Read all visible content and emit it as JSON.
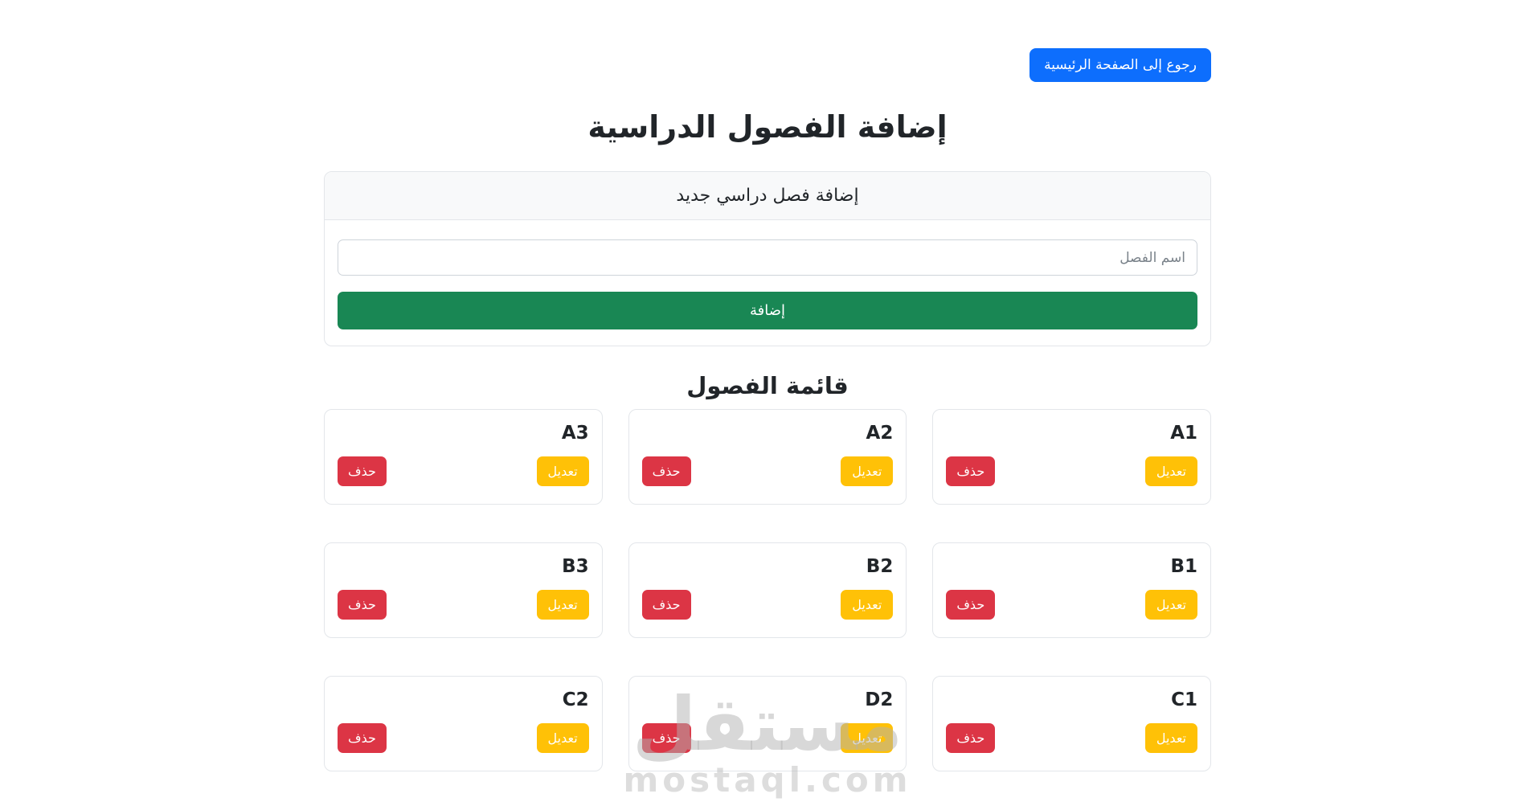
{
  "header": {
    "back_button_label": "رجوع إلى الصفحة الرئيسية"
  },
  "page_title": "إضافة الفصول الدراسية",
  "add_form": {
    "card_title": "إضافة فصل دراسي جديد",
    "name_placeholder": "اسم الفصل",
    "name_value": "",
    "submit_label": "إضافة"
  },
  "class_list": {
    "section_title": "قائمة الفصول",
    "edit_label": "تعديل",
    "delete_label": "حذف",
    "classes": [
      "A1",
      "A2",
      "A3",
      "B1",
      "B2",
      "B3",
      "C1",
      "D2",
      "C2"
    ]
  },
  "watermark": {
    "arabic": "مستقل",
    "latin": "mostaql.com"
  },
  "colors": {
    "primary_blue": "#0d6efd",
    "success_green": "#198754",
    "warning_yellow": "#ffc107",
    "danger_red": "#dc3545"
  }
}
